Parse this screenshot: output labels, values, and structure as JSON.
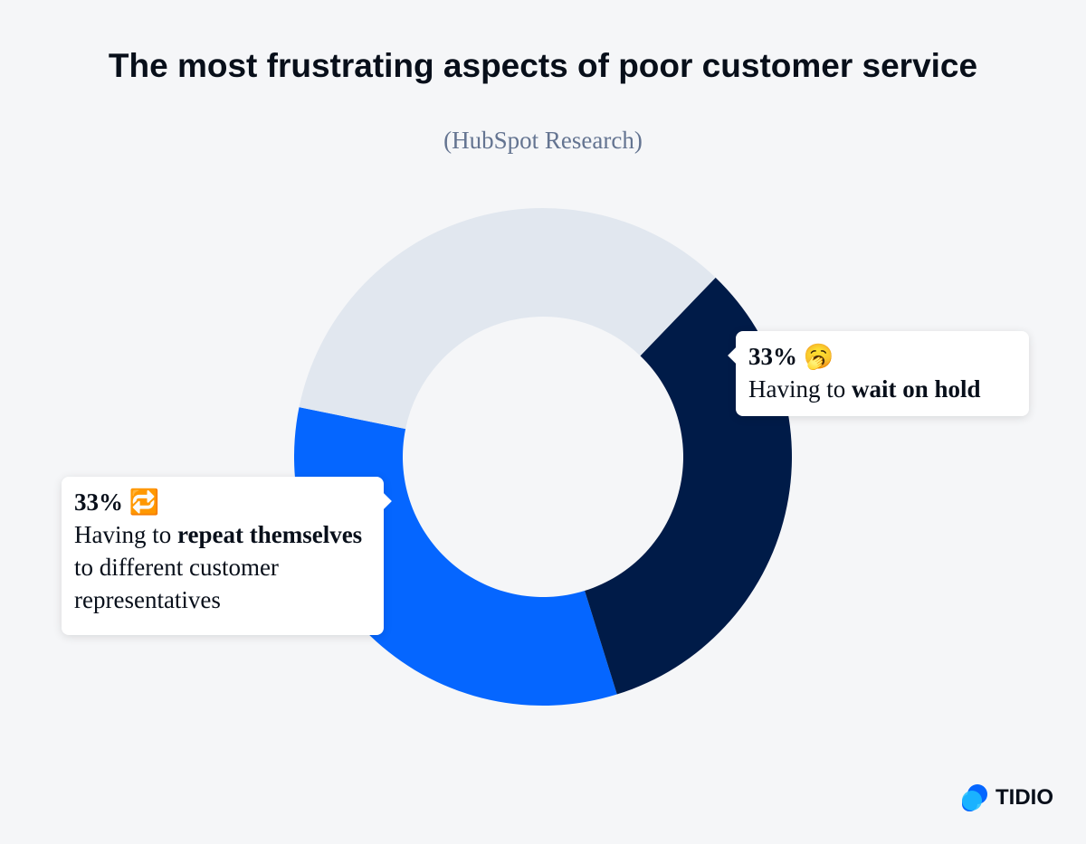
{
  "chart_data": {
    "type": "pie",
    "title": "The most frustrating aspects of poor customer service",
    "subtitle": "(HubSpot Research)",
    "values": [
      34,
      33,
      33
    ],
    "value_labels": [
      null,
      "33%",
      "33%"
    ],
    "colors": [
      "#e1e7ef",
      "#001b48",
      "#0566ff"
    ],
    "icons": [
      null,
      "🥱",
      "🔁"
    ],
    "labels": [
      null,
      [
        {
          "text": "Having to "
        },
        {
          "text": "wait on hold",
          "bold": true
        }
      ],
      [
        {
          "text": "Having to "
        },
        {
          "text": "repeat themselves",
          "bold": true
        },
        {
          "text": " to different customer representatives"
        }
      ]
    ]
  },
  "logo": "TIDIO"
}
